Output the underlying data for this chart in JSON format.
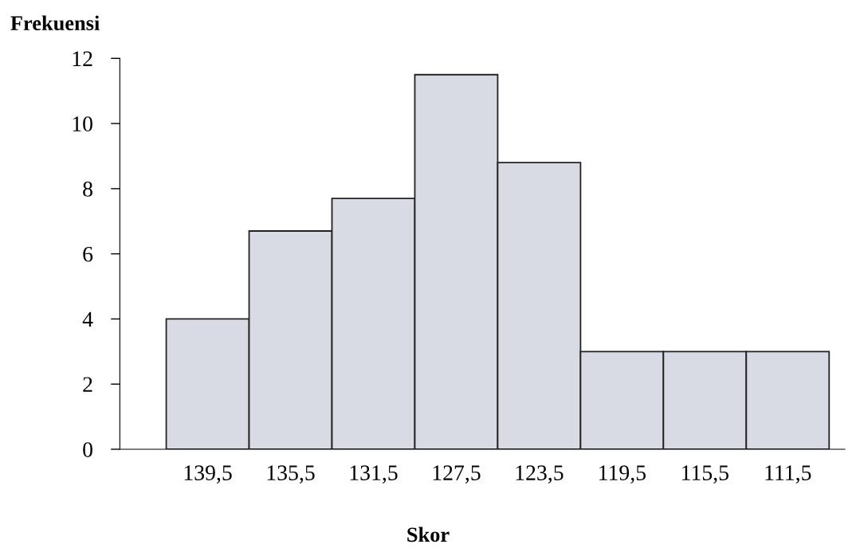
{
  "chart_data": {
    "type": "bar",
    "title": "Frekuensi",
    "xlabel": "Skor",
    "categories": [
      "139,5",
      "135,5",
      "131,5",
      "127,5",
      "123,5",
      "119,5",
      "115,5",
      "111,5"
    ],
    "values": [
      4,
      6.7,
      7.7,
      11.5,
      8.8,
      3,
      3,
      3
    ],
    "color": "#d9dbe4",
    "ylim": [
      0,
      12
    ],
    "yticks": [
      0,
      2,
      4,
      6,
      8,
      10,
      12
    ],
    "grid": false,
    "legend": false
  }
}
